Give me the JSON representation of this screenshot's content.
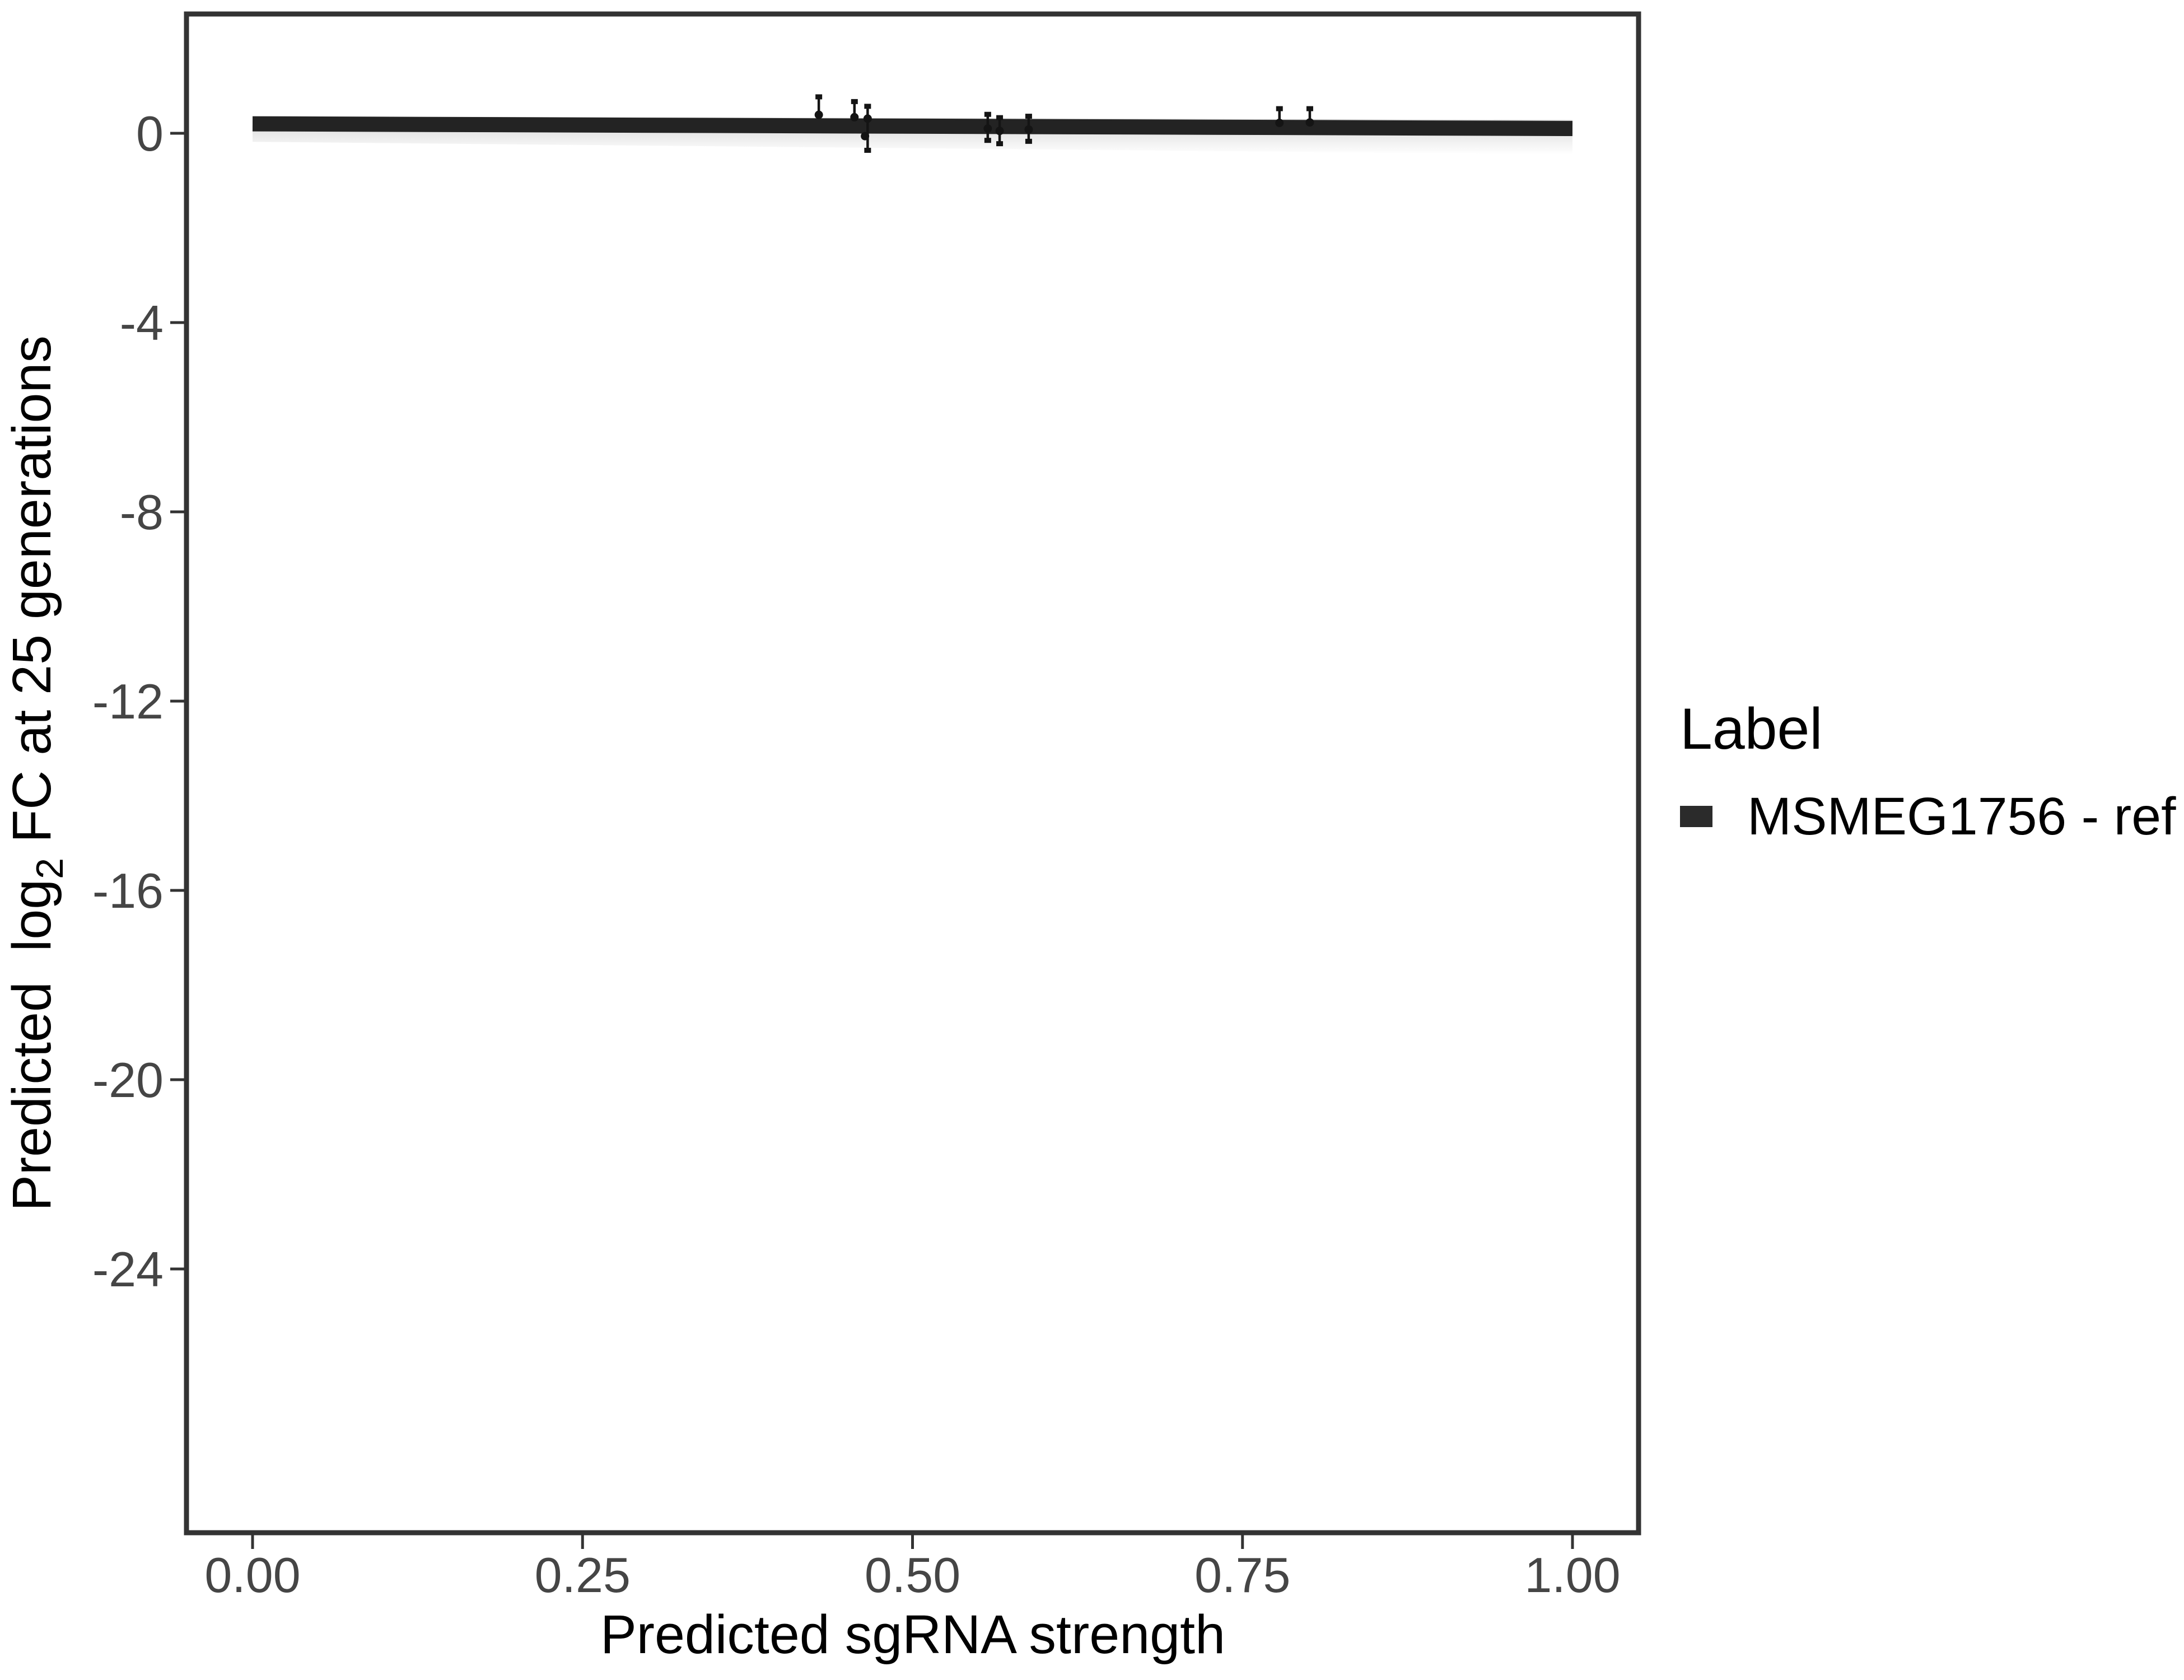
{
  "chart_data": {
    "type": "line",
    "subtype": "trend_line_with_pointranges",
    "title": "",
    "xlabel": "Predicted sgRNA strength",
    "ylabel": "Predicted log2 FC at 25 generations",
    "ylabel_rich": {
      "pre": "Predicted  log",
      "sub": "2",
      "post": " FC at 25 generations"
    },
    "xlim": [
      -0.05,
      1.05
    ],
    "ylim": [
      -29.5,
      2.5
    ],
    "grid": false,
    "x_ticks": [
      {
        "label": "0.00",
        "value": 0
      },
      {
        "label": "0.25",
        "value": 0.25
      },
      {
        "label": "0.50",
        "value": 0.5
      },
      {
        "label": "0.75",
        "value": 0.75
      },
      {
        "label": "1.00",
        "value": 1
      }
    ],
    "y_ticks": [
      {
        "label": "0",
        "value": 0
      },
      {
        "label": "-4",
        "value": -4
      },
      {
        "label": "-8",
        "value": -8
      },
      {
        "label": "-12",
        "value": -12
      },
      {
        "label": "-16",
        "value": -16
      },
      {
        "label": "-20",
        "value": -20
      },
      {
        "label": "-24",
        "value": -24
      }
    ],
    "legend": {
      "title": "Label",
      "position": "right",
      "entries": [
        {
          "label": "MSMEG1756 - ref",
          "color": "#2b2b2b"
        }
      ]
    },
    "series": [
      {
        "name": "MSMEG1756 - ref",
        "kind": "thick_trend_line",
        "x": [
          0,
          1
        ],
        "y": [
          0.2,
          0.1
        ]
      }
    ],
    "ribbon": {
      "x": [
        0,
        1
      ],
      "ymax": [
        0.36,
        0.28
      ],
      "ymin": [
        -0.18,
        -0.45
      ]
    },
    "points": [
      {
        "x": 0.429,
        "y": 0.39,
        "ymin": 0.39,
        "ymax": 0.77
      },
      {
        "x": 0.456,
        "y": 0.34,
        "ymin": 0.34,
        "ymax": 0.67
      },
      {
        "x": 0.466,
        "y": 0.31,
        "ymin": -0.36,
        "ymax": 0.57
      },
      {
        "x": 0.464,
        "y": -0.06,
        "ymin": -0.06,
        "ymax": -0.06
      },
      {
        "x": 0.557,
        "y": 0.1,
        "ymin": -0.15,
        "ymax": 0.4
      },
      {
        "x": 0.566,
        "y": 0.05,
        "ymin": -0.22,
        "ymax": 0.33
      },
      {
        "x": 0.588,
        "y": 0.08,
        "ymin": -0.17,
        "ymax": 0.36
      },
      {
        "x": 0.778,
        "y": 0.22,
        "ymin": 0.22,
        "ymax": 0.52
      },
      {
        "x": 0.801,
        "y": 0.23,
        "ymin": 0.23,
        "ymax": 0.52
      }
    ]
  },
  "colors": {
    "line": "#232323",
    "point": "#141414",
    "axis": "#333333",
    "tick_label": "#454545",
    "title": "#000000",
    "swatch": "#2b2b2b",
    "ribbon": "#3c3c3c",
    "background": "#ffffff"
  }
}
